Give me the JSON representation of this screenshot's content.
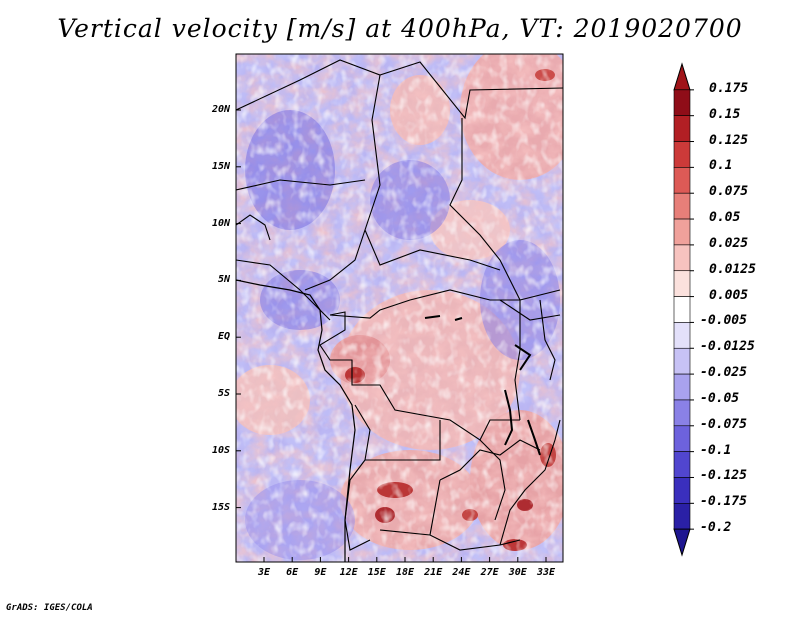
{
  "title": "Vertical velocity [m/s] at 400hPa, VT: 2019020700",
  "credit": "GrADS: IGES/COLA",
  "map": {
    "lat_ticks": [
      "20N",
      "15N",
      "10N",
      "5N",
      "EQ",
      "5S",
      "10S",
      "15S"
    ],
    "lon_ticks": [
      "3E",
      "6E",
      "9E",
      "12E",
      "15E",
      "18E",
      "21E",
      "24E",
      "27E",
      "30E",
      "33E"
    ]
  },
  "colorbar": {
    "labels": [
      "0.175",
      "0.15",
      "0.125",
      "0.1",
      "0.075",
      "0.05",
      "0.025",
      "0.0125",
      "0.005",
      "-0.005",
      "-0.0125",
      "-0.025",
      "-0.05",
      "-0.075",
      "-0.1",
      "-0.125",
      "-0.175",
      "-0.2"
    ],
    "colors": [
      "#8f0d18",
      "#b21f24",
      "#cc3a39",
      "#dd5a56",
      "#e77f79",
      "#f0a19b",
      "#f7c3bf",
      "#fbe1dd",
      "#ffffff",
      "#e3e0fa",
      "#c7c2f5",
      "#a9a2ee",
      "#8a81e6",
      "#6d62dd",
      "#5146cf",
      "#3a2fbd",
      "#2a20a6",
      "#1e1690"
    ]
  }
}
